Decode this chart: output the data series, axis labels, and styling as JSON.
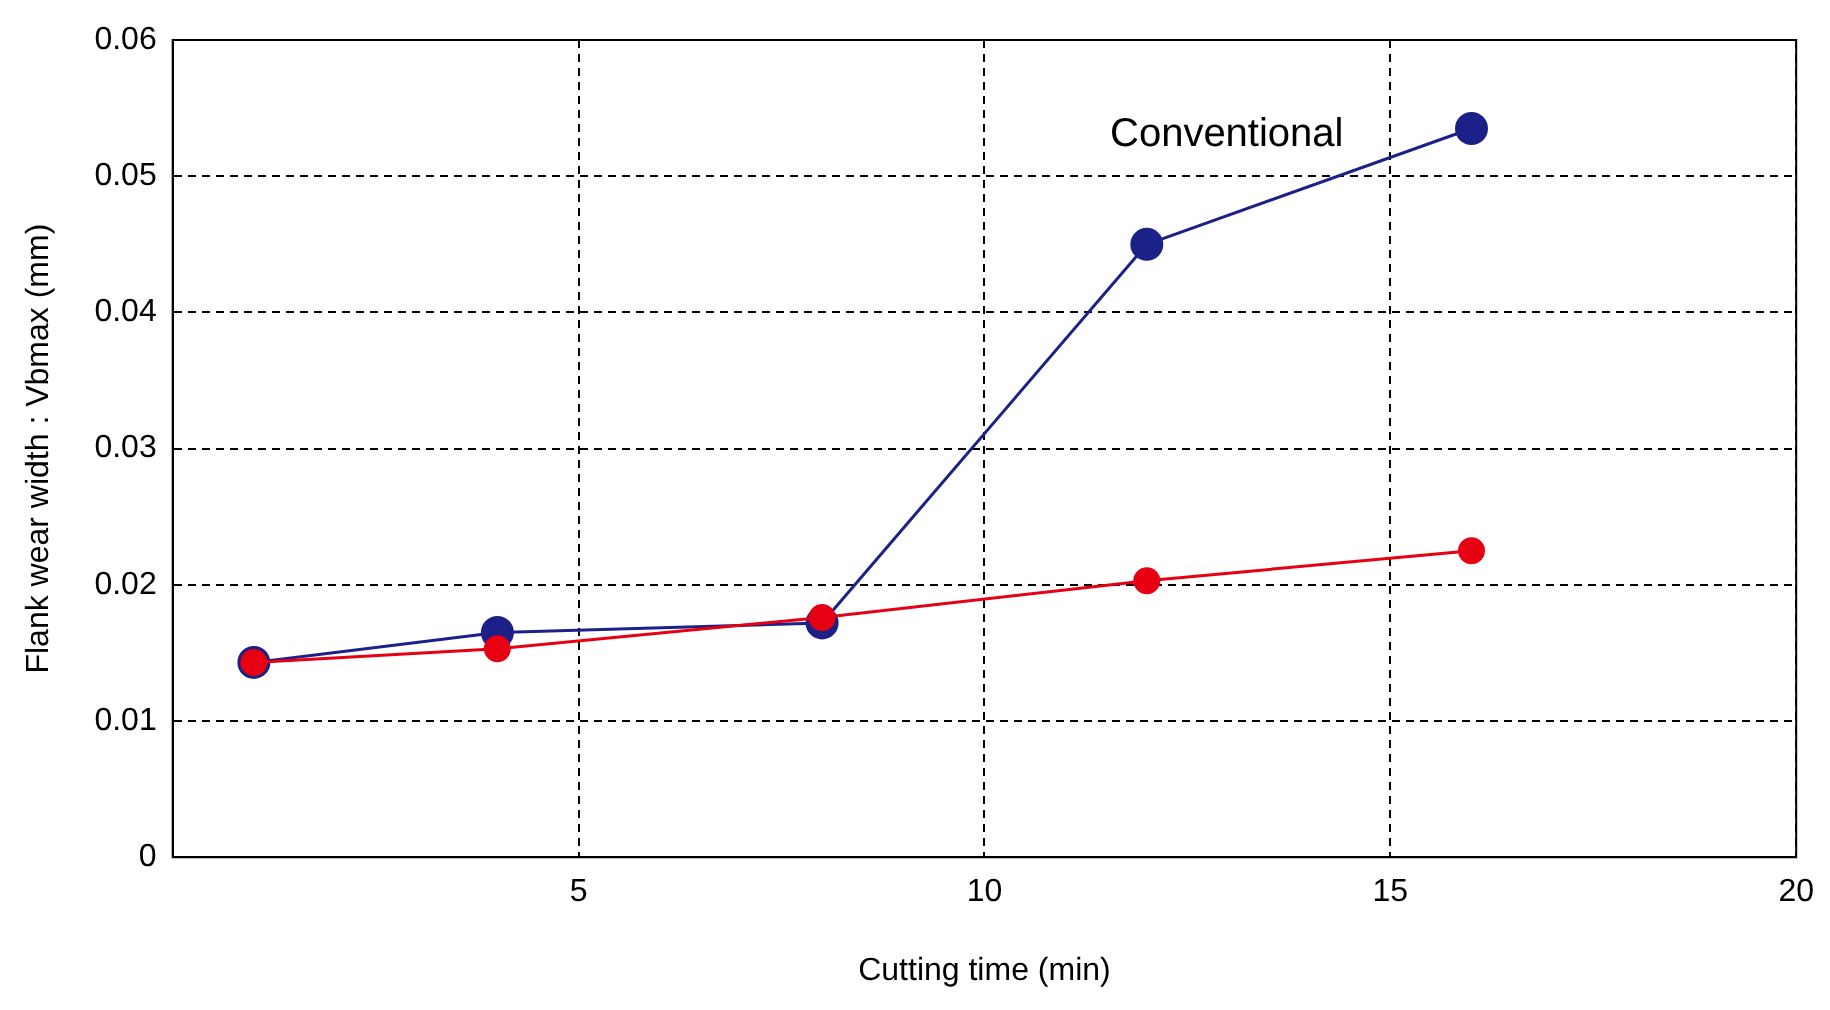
{
  "chart_data": {
    "type": "line",
    "xlabel": "Cutting time (min)",
    "ylabel": "Flank wear width : Vbmax (mm)",
    "xlim": [
      0,
      20
    ],
    "xticks": [
      5,
      10,
      15,
      20
    ],
    "ylim": [
      0,
      0.06
    ],
    "yticks": [
      0,
      0.01,
      0.02,
      0.03,
      0.04,
      0.05,
      0.06
    ],
    "grid": true,
    "legend": false,
    "marker": "circle",
    "line_style": "solid",
    "series": [
      {
        "name": "Conventional",
        "color": "#1c2188",
        "x": [
          1,
          4,
          8,
          12,
          16
        ],
        "values": [
          0.0143,
          0.0165,
          0.0172,
          0.045,
          0.0535
        ]
      },
      {
        "color": "#e60012",
        "x": [
          1,
          4,
          8,
          12,
          16
        ],
        "values": [
          0.0143,
          0.0153,
          0.0176,
          0.0203,
          0.0225
        ]
      }
    ]
  }
}
